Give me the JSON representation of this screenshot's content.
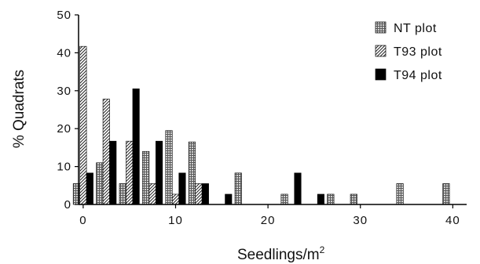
{
  "chart_data": {
    "type": "bar",
    "title": "",
    "xlabel": "Seedlings/m",
    "xlabel_superscript": "2",
    "ylabel": "% Quadrats",
    "xlim": [
      -0.5,
      41.5
    ],
    "ylim": [
      0,
      50
    ],
    "xticks": [
      "0",
      "10",
      "20",
      "30",
      "40"
    ],
    "xtick_values": [
      0,
      10,
      20,
      30,
      40
    ],
    "yticks": [
      "0",
      "10",
      "20",
      "30",
      "40",
      "50"
    ],
    "ytick_values": [
      0,
      10,
      20,
      30,
      40,
      50
    ],
    "grid": false,
    "legend_position": "top-right",
    "group_x": [
      0,
      2.5,
      5,
      7.5,
      10,
      12.5,
      15,
      17.5,
      20,
      22.5,
      25,
      27.5,
      30,
      35,
      40
    ],
    "series": [
      {
        "name": "NT plot",
        "fill": "gray-grid",
        "color": "#8c8c8c",
        "values": [
          5.5,
          11,
          5.5,
          14,
          19.5,
          16.5,
          0,
          8.3,
          0,
          2.7,
          0,
          2.7,
          2.7,
          5.5,
          5.5
        ]
      },
      {
        "name": "T93 plot",
        "fill": "diagonal-hatch",
        "color": "#222222",
        "values": [
          41.7,
          27.8,
          16.7,
          5.5,
          2.7,
          5.5,
          0,
          0,
          0,
          0,
          0,
          0,
          0,
          0,
          0
        ]
      },
      {
        "name": "T94 plot",
        "fill": "solid",
        "color": "#000000",
        "values": [
          8.3,
          16.7,
          30.5,
          16.7,
          8.3,
          5.5,
          2.7,
          0,
          0,
          8.3,
          2.7,
          0,
          0,
          0,
          0
        ]
      }
    ]
  }
}
